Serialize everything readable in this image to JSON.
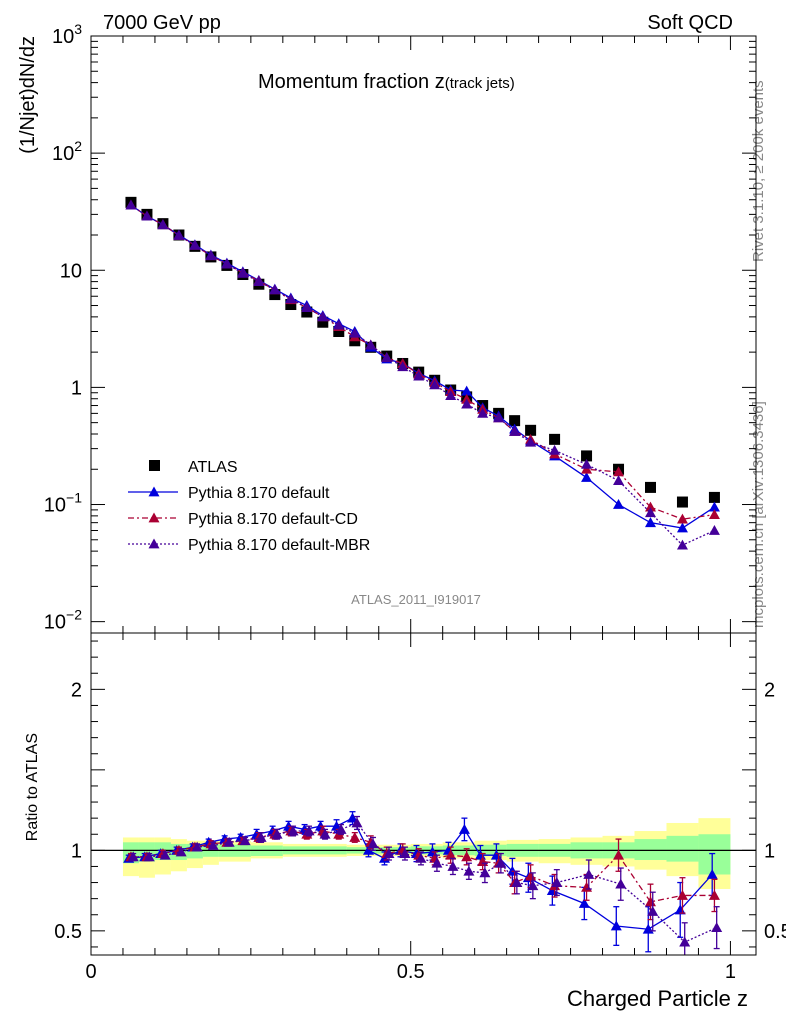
{
  "header": {
    "left_label": "7000 GeV pp",
    "right_label": "Soft QCD"
  },
  "side": {
    "rivet": "Rivet 3.1.10, ≥ 200k events",
    "mcplots": "mcplots.cern.ch [arXiv:1306.3436]"
  },
  "chart_data": [
    {
      "type": "scatter",
      "panel": "main",
      "title_main": "Momentum fraction z",
      "title_sub": "(track jets)",
      "ylabel": "(1/Njet)dN/dz",
      "yscale": "log",
      "ylim": [
        0.008,
        1000
      ],
      "xlim": [
        0,
        1.04
      ],
      "watermark": "ATLAS_2011_I919017",
      "ytick_labels": [
        {
          "v": 0.01,
          "base": "10",
          "exp": "−2"
        },
        {
          "v": 0.1,
          "base": "10",
          "exp": "−1"
        },
        {
          "v": 1,
          "base": "1",
          "exp": ""
        },
        {
          "v": 10,
          "base": "10",
          "exp": ""
        },
        {
          "v": 100,
          "base": "10",
          "exp": "2"
        },
        {
          "v": 1000,
          "base": "10",
          "exp": "3"
        }
      ],
      "legend_position": "lower-left",
      "legend": [
        {
          "label": "ATLAS",
          "marker": "square",
          "color": "#000000",
          "dash": ""
        },
        {
          "label": "Pythia 8.170 default",
          "marker": "triangle",
          "color": "#0000dd",
          "dash": ""
        },
        {
          "label": "Pythia 8.170 default-CD",
          "marker": "triangle",
          "color": "#aa0033",
          "dash": "6,3,2,3"
        },
        {
          "label": "Pythia 8.170 default-MBR",
          "marker": "triangle",
          "color": "#440099",
          "dash": "2,2"
        }
      ],
      "x": [
        0.0625,
        0.0875,
        0.1125,
        0.1375,
        0.1625,
        0.1875,
        0.2125,
        0.2375,
        0.2625,
        0.2875,
        0.3125,
        0.3375,
        0.3625,
        0.3875,
        0.4125,
        0.4375,
        0.4625,
        0.4875,
        0.5125,
        0.5375,
        0.5625,
        0.5875,
        0.6125,
        0.6375,
        0.6625,
        0.6875,
        0.725,
        0.775,
        0.825,
        0.875,
        0.925,
        0.975
      ],
      "series": [
        {
          "name": "ATLAS",
          "color": "#000000",
          "values": [
            38,
            30,
            25,
            20,
            16,
            13,
            11,
            9.2,
            7.6,
            6.2,
            5.1,
            4.4,
            3.6,
            3.0,
            2.5,
            2.2,
            1.85,
            1.6,
            1.35,
            1.15,
            0.95,
            0.83,
            0.7,
            0.6,
            0.52,
            0.43,
            0.36,
            0.26,
            0.2,
            0.14,
            0.105,
            0.115
          ]
        },
        {
          "name": "Pythia 8.170 default",
          "color": "#0000dd",
          "values": [
            36,
            29,
            24.5,
            20,
            16.5,
            13.5,
            11.5,
            9.7,
            8.2,
            6.9,
            5.8,
            5.0,
            4.1,
            3.5,
            3.0,
            2.2,
            1.75,
            1.6,
            1.32,
            1.14,
            0.95,
            0.93,
            0.67,
            0.57,
            0.44,
            0.35,
            0.26,
            0.17,
            0.1,
            0.07,
            0.063,
            0.095
          ]
        },
        {
          "name": "Pythia 8.170 default-CD",
          "color": "#aa0033",
          "values": [
            36,
            29,
            24.5,
            19.8,
            16.3,
            13.3,
            11.3,
            9.5,
            8.1,
            6.8,
            5.6,
            4.8,
            4.0,
            3.3,
            2.7,
            2.3,
            1.8,
            1.6,
            1.3,
            1.1,
            0.92,
            0.79,
            0.65,
            0.55,
            0.42,
            0.36,
            0.27,
            0.2,
            0.19,
            0.095,
            0.075,
            0.082
          ]
        },
        {
          "name": "Pythia 8.170 default-MBR",
          "color": "#440099",
          "values": [
            36,
            29,
            24.5,
            19.8,
            16.3,
            13.3,
            11.3,
            9.4,
            8.0,
            6.8,
            5.7,
            4.8,
            4.0,
            3.4,
            2.9,
            2.3,
            1.8,
            1.5,
            1.25,
            1.05,
            0.85,
            0.72,
            0.6,
            0.55,
            0.42,
            0.34,
            0.29,
            0.22,
            0.16,
            0.085,
            0.045,
            0.06
          ]
        }
      ]
    },
    {
      "type": "line",
      "panel": "ratio",
      "ylabel": "Ratio to ATLAS",
      "xlabel": "Charged Particle z",
      "ylim": [
        0.35,
        2.35
      ],
      "xlim": [
        0,
        1.04
      ],
      "ytick_labels": [
        {
          "v": 0.5,
          "t": "0.5"
        },
        {
          "v": 1,
          "t": "1"
        },
        {
          "v": 2,
          "t": "2"
        }
      ],
      "xtick_labels": [
        {
          "v": 0,
          "t": "0"
        },
        {
          "v": 0.5,
          "t": "0.5"
        },
        {
          "v": 1,
          "t": "1"
        }
      ],
      "band_colors": {
        "inner": "#99ff99",
        "outer": "#ffff99"
      },
      "bands": [
        {
          "x0": 0.05,
          "x1": 0.075,
          "inner": [
            0.92,
            1.05
          ],
          "outer": [
            0.84,
            1.08
          ]
        },
        {
          "x0": 0.075,
          "x1": 0.1,
          "inner": [
            0.93,
            1.05
          ],
          "outer": [
            0.83,
            1.08
          ]
        },
        {
          "x0": 0.1,
          "x1": 0.125,
          "inner": [
            0.94,
            1.05
          ],
          "outer": [
            0.85,
            1.08
          ]
        },
        {
          "x0": 0.125,
          "x1": 0.15,
          "inner": [
            0.94,
            1.04
          ],
          "outer": [
            0.87,
            1.07
          ]
        },
        {
          "x0": 0.15,
          "x1": 0.175,
          "inner": [
            0.95,
            1.04
          ],
          "outer": [
            0.89,
            1.06
          ]
        },
        {
          "x0": 0.175,
          "x1": 0.2,
          "inner": [
            0.96,
            1.04
          ],
          "outer": [
            0.91,
            1.06
          ]
        },
        {
          "x0": 0.2,
          "x1": 0.25,
          "inner": [
            0.96,
            1.035
          ],
          "outer": [
            0.93,
            1.06
          ]
        },
        {
          "x0": 0.25,
          "x1": 0.3,
          "inner": [
            0.965,
            1.03
          ],
          "outer": [
            0.95,
            1.05
          ]
        },
        {
          "x0": 0.3,
          "x1": 0.4,
          "inner": [
            0.975,
            1.025
          ],
          "outer": [
            0.96,
            1.04
          ]
        },
        {
          "x0": 0.4,
          "x1": 0.5,
          "inner": [
            0.98,
            1.02
          ],
          "outer": [
            0.965,
            1.035
          ]
        },
        {
          "x0": 0.5,
          "x1": 0.55,
          "inner": [
            0.975,
            1.025
          ],
          "outer": [
            0.96,
            1.04
          ]
        },
        {
          "x0": 0.55,
          "x1": 0.6,
          "inner": [
            0.97,
            1.03
          ],
          "outer": [
            0.95,
            1.05
          ]
        },
        {
          "x0": 0.6,
          "x1": 0.65,
          "inner": [
            0.965,
            1.035
          ],
          "outer": [
            0.94,
            1.06
          ]
        },
        {
          "x0": 0.65,
          "x1": 0.7,
          "inner": [
            0.96,
            1.04
          ],
          "outer": [
            0.93,
            1.065
          ]
        },
        {
          "x0": 0.7,
          "x1": 0.75,
          "inner": [
            0.96,
            1.04
          ],
          "outer": [
            0.92,
            1.07
          ]
        },
        {
          "x0": 0.75,
          "x1": 0.8,
          "inner": [
            0.95,
            1.05
          ],
          "outer": [
            0.91,
            1.08
          ]
        },
        {
          "x0": 0.8,
          "x1": 0.85,
          "inner": [
            0.95,
            1.05
          ],
          "outer": [
            0.9,
            1.09
          ]
        },
        {
          "x0": 0.85,
          "x1": 0.9,
          "inner": [
            0.94,
            1.07
          ],
          "outer": [
            0.88,
            1.12
          ]
        },
        {
          "x0": 0.9,
          "x1": 0.95,
          "inner": [
            0.93,
            1.09
          ],
          "outer": [
            0.84,
            1.17
          ]
        },
        {
          "x0": 0.95,
          "x1": 1.0,
          "inner": [
            0.85,
            1.1
          ],
          "outer": [
            0.76,
            1.2
          ]
        }
      ],
      "series": [
        {
          "name": "Pythia 8.170 default",
          "color": "#0000dd",
          "values": [
            0.95,
            0.96,
            0.98,
            1.0,
            1.02,
            1.05,
            1.07,
            1.08,
            1.1,
            1.12,
            1.15,
            1.13,
            1.15,
            1.15,
            1.2,
            1.0,
            0.95,
            1.0,
            0.98,
            0.99,
            1.0,
            1.13,
            0.97,
            0.97,
            0.87,
            0.83,
            0.75,
            0.67,
            0.53,
            0.51,
            0.63,
            0.85
          ],
          "err": [
            0.02,
            0.02,
            0.02,
            0.02,
            0.02,
            0.02,
            0.02,
            0.02,
            0.03,
            0.03,
            0.03,
            0.03,
            0.03,
            0.04,
            0.04,
            0.04,
            0.04,
            0.04,
            0.05,
            0.05,
            0.05,
            0.07,
            0.06,
            0.07,
            0.08,
            0.09,
            0.09,
            0.1,
            0.12,
            0.14,
            0.17,
            0.13
          ]
        },
        {
          "name": "Pythia 8.170 default-CD",
          "color": "#aa0033",
          "values": [
            0.96,
            0.96,
            0.98,
            1.0,
            1.02,
            1.04,
            1.05,
            1.06,
            1.08,
            1.1,
            1.12,
            1.1,
            1.12,
            1.1,
            1.08,
            1.05,
            0.98,
            1.0,
            0.97,
            0.95,
            0.97,
            0.96,
            0.93,
            0.92,
            0.8,
            0.84,
            0.78,
            0.77,
            0.97,
            0.68,
            0.72,
            0.72
          ],
          "err": [
            0.02,
            0.02,
            0.02,
            0.02,
            0.02,
            0.02,
            0.02,
            0.02,
            0.03,
            0.03,
            0.03,
            0.03,
            0.03,
            0.03,
            0.03,
            0.04,
            0.04,
            0.04,
            0.04,
            0.04,
            0.05,
            0.05,
            0.05,
            0.06,
            0.07,
            0.07,
            0.07,
            0.08,
            0.1,
            0.11,
            0.11,
            0.1
          ]
        },
        {
          "name": "Pythia 8.170 default-MBR",
          "color": "#440099",
          "values": [
            0.96,
            0.96,
            0.97,
            0.99,
            1.02,
            1.03,
            1.05,
            1.06,
            1.08,
            1.1,
            1.12,
            1.12,
            1.1,
            1.13,
            1.17,
            1.04,
            0.98,
            0.98,
            0.95,
            0.92,
            0.9,
            0.87,
            0.86,
            0.92,
            0.8,
            0.78,
            0.8,
            0.85,
            0.79,
            0.62,
            0.43,
            0.52
          ],
          "err": [
            0.02,
            0.02,
            0.02,
            0.02,
            0.02,
            0.02,
            0.02,
            0.02,
            0.03,
            0.03,
            0.03,
            0.03,
            0.03,
            0.03,
            0.04,
            0.04,
            0.04,
            0.04,
            0.04,
            0.05,
            0.05,
            0.05,
            0.06,
            0.06,
            0.07,
            0.08,
            0.08,
            0.09,
            0.1,
            0.12,
            0.12,
            0.13
          ]
        }
      ]
    }
  ]
}
